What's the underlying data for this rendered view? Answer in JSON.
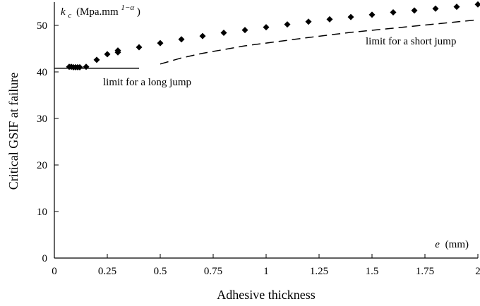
{
  "chart_data": {
    "type": "scatter",
    "xlabel": "Adhesive thickness",
    "ylabel": "Critical GSIF at failure",
    "x_unit_label": "(mm)",
    "x_symbol": "e",
    "y_unit_symbol": "k",
    "y_unit_subscript": "c",
    "y_unit_text": "(Mpa.mm",
    "y_unit_exponent": "1−α",
    "y_unit_close": ")",
    "xlim": [
      0,
      2
    ],
    "ylim": [
      0,
      55
    ],
    "x_ticks": [
      "0",
      "0.25",
      "0.5",
      "0.75",
      "1",
      "1.25",
      "1.5",
      "1.75",
      "2"
    ],
    "y_ticks": [
      "0",
      "10",
      "20",
      "30",
      "40",
      "50"
    ],
    "grid": false,
    "series": [
      {
        "marker": "diamond",
        "x": [
          0.07,
          0.08,
          0.09,
          0.1,
          0.11,
          0.12,
          0.15,
          0.2,
          0.25,
          0.3,
          0.3,
          0.4,
          0.5,
          0.6,
          0.7,
          0.8,
          0.9,
          1.0,
          1.1,
          1.2,
          1.3,
          1.4,
          1.5,
          1.6,
          1.7,
          1.8,
          1.9,
          2.0
        ],
        "y": [
          41.1,
          41.1,
          41.0,
          41.0,
          41.0,
          41.0,
          41.1,
          42.6,
          43.8,
          44.2,
          44.6,
          45.3,
          46.2,
          47.0,
          47.7,
          48.4,
          49.0,
          49.6,
          50.2,
          50.8,
          51.3,
          51.8,
          52.3,
          52.8,
          53.2,
          53.6,
          54.0,
          54.5
        ]
      }
    ],
    "lines": [
      {
        "style": "solid",
        "label": "limit for a long jump",
        "x": [
          0,
          0.4
        ],
        "y": [
          40.8,
          40.8
        ]
      },
      {
        "style": "dashed",
        "label": "limit for a short jump",
        "x": [
          0.5,
          0.6,
          0.7,
          0.8,
          0.9,
          1.0,
          1.2,
          1.4,
          1.6,
          1.8,
          2.0
        ],
        "y": [
          41.7,
          43.0,
          44.0,
          44.8,
          45.6,
          46.2,
          47.4,
          48.5,
          49.4,
          50.3,
          51.2
        ]
      }
    ],
    "colors": {
      "marker": "#000000",
      "line": "#000000"
    }
  }
}
